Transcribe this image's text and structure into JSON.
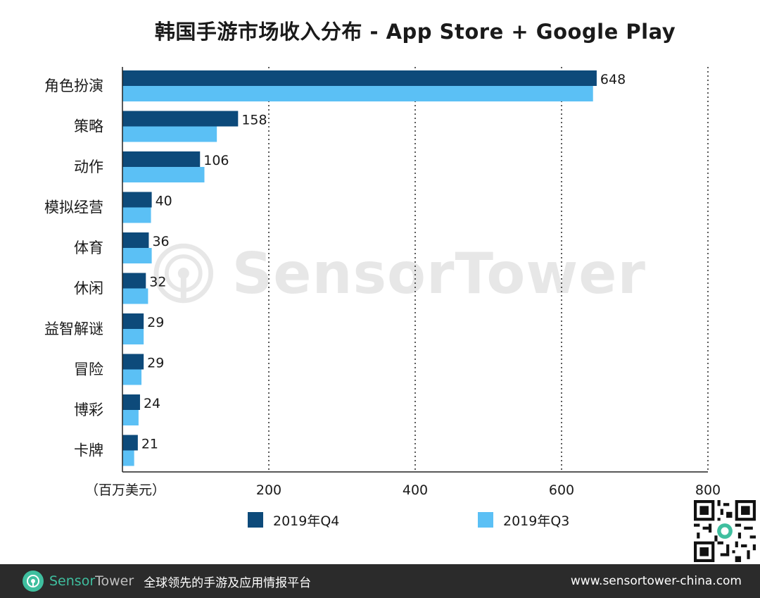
{
  "title": "韩国手游市场收入分布 - App Store + Google Play",
  "colors": {
    "q4": "#0d4a7a",
    "q3": "#5bc0f5",
    "footer_bg": "#2b2b2b",
    "brand_green": "#3fbf9f"
  },
  "chart_data": {
    "type": "bar",
    "orientation": "horizontal",
    "categories": [
      "角色扮演",
      "策略",
      "动作",
      "模拟经营",
      "体育",
      "休闲",
      "益智解谜",
      "冒险",
      "博彩",
      "卡牌"
    ],
    "series": [
      {
        "name": "2019年Q4",
        "values": [
          648,
          158,
          106,
          40,
          36,
          32,
          29,
          29,
          24,
          21
        ]
      },
      {
        "name": "2019年Q3",
        "values": [
          643,
          129,
          112,
          39,
          40,
          35,
          29,
          26,
          22,
          16
        ]
      }
    ],
    "data_labels": [
      "648",
      "158",
      "106",
      "40",
      "36",
      "32",
      "29",
      "29",
      "24",
      "21"
    ],
    "xlim": [
      0,
      800
    ],
    "xticks": [
      200,
      400,
      600,
      800
    ],
    "xtick_labels": [
      "200",
      "400",
      "600",
      "800"
    ],
    "xlabel": "（百万美元）",
    "grid": "vertical-dotted",
    "legend_position": "bottom"
  },
  "watermark": {
    "text": "SensorTower"
  },
  "footer": {
    "brand_part1": "Sensor",
    "brand_part2": "Tower",
    "tagline": "全球领先的手游及应用情报平台",
    "url": "www.sensortower-china.com"
  }
}
